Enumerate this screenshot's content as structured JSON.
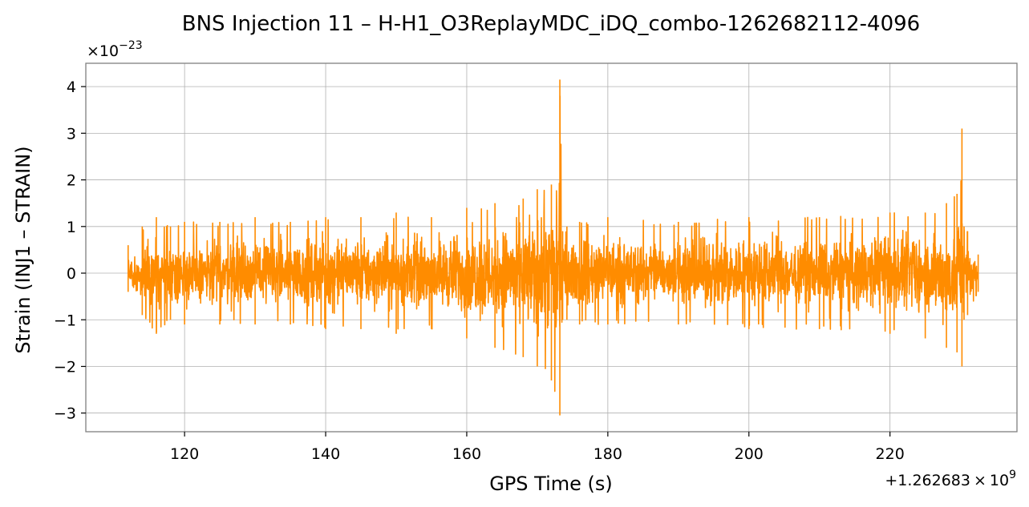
{
  "chart_data": {
    "type": "line",
    "title": "BNS Injection 11 – H-H1_O3ReplayMDC_iDQ_combo-1262682112-4096",
    "xlabel": "GPS Time (s)",
    "ylabel": "Strain (INJ1 – STRAIN)",
    "x_offset_text": "+1.262683",
    "x_offset_times": "×",
    "x_offset_base": "10",
    "x_offset_exp": "9",
    "y_scale_prefix": "×10",
    "y_scale_exp": "−23",
    "xlim": [
      106,
      238
    ],
    "ylim": [
      -3.4,
      4.5
    ],
    "xticks": [
      120,
      140,
      160,
      180,
      200,
      220
    ],
    "xtick_labels": [
      "120",
      "140",
      "160",
      "180",
      "200",
      "220"
    ],
    "yticks": [
      -3,
      -2,
      -1,
      0,
      1,
      2,
      3,
      4
    ],
    "ytick_labels": [
      "−3",
      "−2",
      "−1",
      "0",
      "1",
      "2",
      "3",
      "4"
    ],
    "grid": true,
    "legend": "none",
    "series": [
      {
        "color": "#ff8c00",
        "x_start": 112.0,
        "x_end": 232.5,
        "envelope_x": [
          112,
          114,
          116,
          118,
          120,
          125,
          130,
          135,
          140,
          145,
          150,
          155,
          160,
          164,
          168,
          170,
          172,
          173.2,
          173.6,
          174.2,
          176,
          180,
          190,
          200,
          210,
          220,
          225,
          228,
          229.5,
          230.2,
          230.5,
          231,
          232.5
        ],
        "envelope_upper": [
          0.6,
          1.0,
          1.2,
          1.0,
          1.1,
          1.1,
          1.2,
          1.1,
          1.2,
          1.2,
          1.3,
          1.2,
          1.4,
          1.5,
          1.6,
          1.8,
          1.9,
          4.15,
          0.9,
          1.0,
          1.1,
          1.2,
          1.1,
          1.2,
          1.2,
          1.3,
          1.3,
          1.5,
          1.7,
          3.1,
          1.0,
          0.9,
          0.4
        ],
        "envelope_lower": [
          -0.4,
          -0.9,
          -1.3,
          -1.0,
          -1.1,
          -1.1,
          -1.1,
          -1.1,
          -1.2,
          -1.2,
          -1.3,
          -1.2,
          -1.4,
          -1.6,
          -1.8,
          -2.0,
          -2.3,
          -3.05,
          -1.0,
          -1.0,
          -1.1,
          -1.1,
          -1.1,
          -1.2,
          -1.2,
          -1.3,
          -1.4,
          -1.6,
          -1.7,
          -2.0,
          -1.0,
          -0.9,
          -0.4
        ]
      }
    ]
  }
}
